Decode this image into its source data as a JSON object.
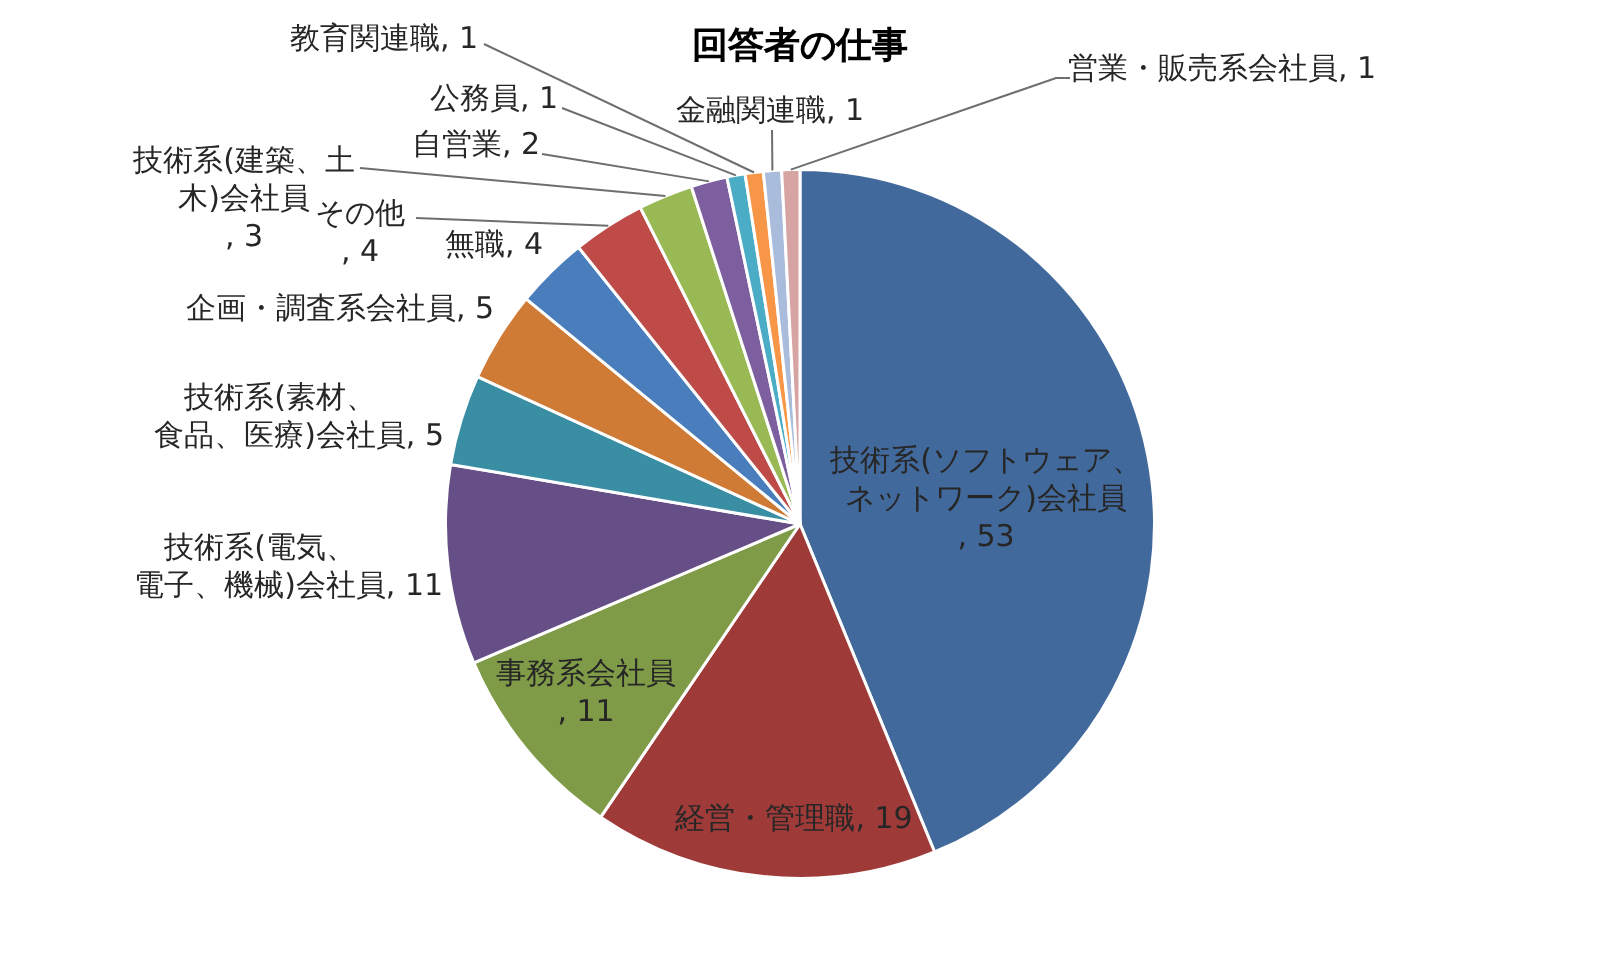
{
  "chart_data": {
    "type": "pie",
    "title": "回答者の仕事",
    "categories": [
      "技術系(ソフトウェア、ネットワーク)会社員",
      "経営・管理職",
      "事務系会社員",
      "技術系(電気、電子、機械)会社員",
      "技術系(素材、食品、医療)会社員",
      "企画・調査系会社員",
      "無職",
      "その他",
      "技術系(建築、土木)会社員",
      "自営業",
      "公務員",
      "教育関連職",
      "金融関連職",
      "営業・販売系会社員"
    ],
    "values": [
      53,
      19,
      11,
      11,
      5,
      5,
      4,
      4,
      3,
      2,
      1,
      1,
      1,
      1
    ],
    "value_labels": [
      ", 53",
      ", 19",
      ", 11",
      ", 11",
      ", 5",
      ", 5",
      ", 4",
      ", 4",
      ", 3",
      ", 2",
      ", 1",
      ", 1",
      ", 1",
      ", 1"
    ],
    "colors": [
      "#42699b",
      "#9e3a38",
      "#7f9b48",
      "#664f87",
      "#3a8ea3",
      "#cf7a35",
      "#4a7dbb",
      "#be4b48",
      "#98b954",
      "#7d5fa0",
      "#4aacc5",
      "#f79646",
      "#a9bcdb",
      "#d6a4a3"
    ],
    "legend": false
  }
}
